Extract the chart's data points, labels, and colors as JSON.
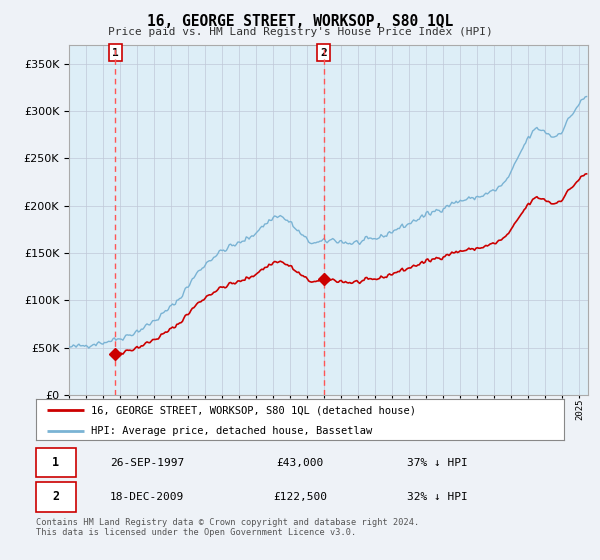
{
  "title": "16, GEORGE STREET, WORKSOP, S80 1QL",
  "subtitle": "Price paid vs. HM Land Registry's House Price Index (HPI)",
  "legend_line1": "16, GEORGE STREET, WORKSOP, S80 1QL (detached house)",
  "legend_line2": "HPI: Average price, detached house, Bassetlaw",
  "purchase1_date": "26-SEP-1997",
  "purchase1_price": 43000,
  "purchase1_label": "37% ↓ HPI",
  "purchase2_date": "18-DEC-2009",
  "purchase2_price": 122500,
  "purchase2_label": "32% ↓ HPI",
  "footer": "Contains HM Land Registry data © Crown copyright and database right 2024.\nThis data is licensed under the Open Government Licence v3.0.",
  "hpi_color": "#7ab3d4",
  "hpi_fill_color": "#ddeef7",
  "price_color": "#cc0000",
  "vline_color": "#ff5555",
  "background_color": "#eef2f7",
  "plot_bg_color": "#ddeef7",
  "legend_bg": "#ffffff",
  "ylim": [
    0,
    370000
  ],
  "yticks": [
    0,
    50000,
    100000,
    150000,
    200000,
    250000,
    300000,
    350000
  ],
  "xlim_start": 1995.0,
  "xlim_end": 2025.5,
  "purchase1_x": 1997.72,
  "purchase2_x": 2009.96
}
